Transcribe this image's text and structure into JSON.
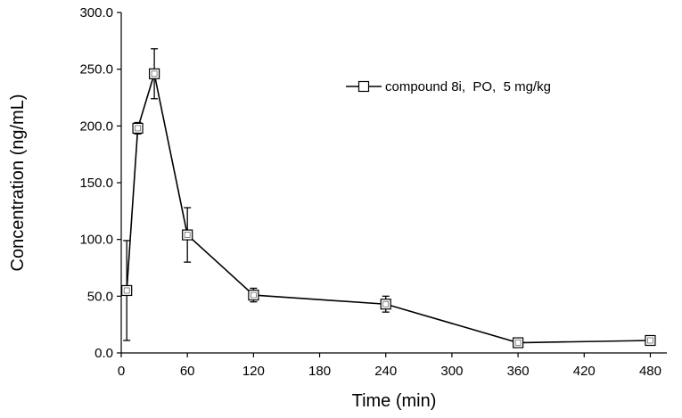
{
  "chart_data": {
    "type": "line",
    "title": "",
    "xlabel": "Time (min)",
    "ylabel": "Concentration (ng/mL)",
    "xlim": [
      0,
      495
    ],
    "ylim": [
      0,
      300
    ],
    "x_ticks": [
      0,
      60,
      120,
      180,
      240,
      300,
      360,
      420,
      480
    ],
    "x_tick_labels": [
      "0",
      "60",
      "120",
      "180",
      "240",
      "300",
      "360",
      "420",
      "480"
    ],
    "y_ticks": [
      0,
      50,
      100,
      150,
      200,
      250,
      300
    ],
    "y_tick_labels": [
      "0.0",
      "50.0",
      "100.0",
      "150.0",
      "200.0",
      "250.0",
      "300.0"
    ],
    "grid": false,
    "legend_position": "top-right",
    "series": [
      {
        "name": "compound 8i,  PO,  5 mg/kg",
        "marker": "open-square",
        "color": "#000000",
        "x": [
          5,
          15,
          30,
          60,
          120,
          240,
          360,
          480
        ],
        "y": [
          55,
          198,
          246,
          104,
          51,
          43,
          9,
          11
        ],
        "error": [
          44,
          5,
          22,
          24,
          6,
          7,
          3,
          3
        ]
      }
    ]
  }
}
